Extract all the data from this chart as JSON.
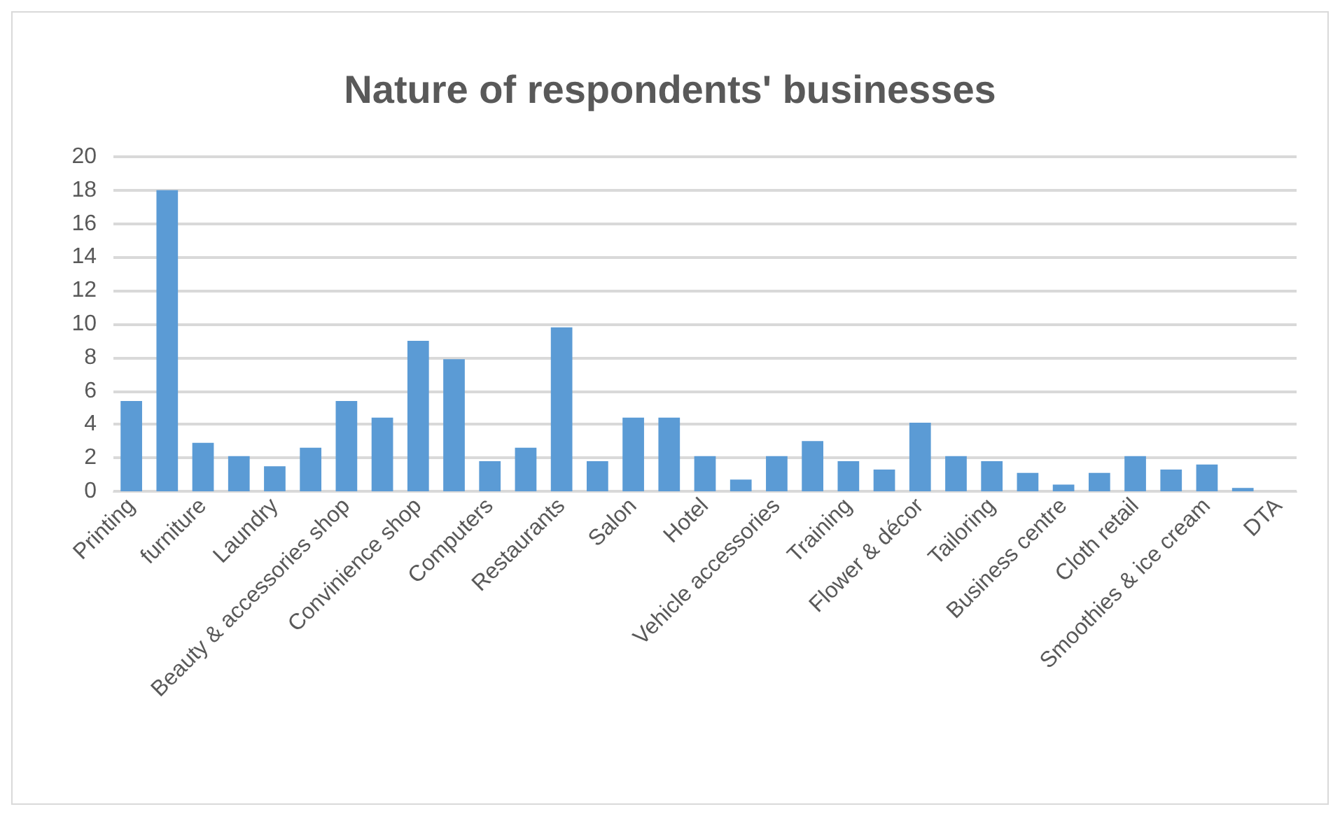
{
  "chart_data": {
    "type": "bar",
    "title": "Nature of respondents' businesses",
    "categories": [
      "Printing",
      null,
      "furniture",
      null,
      "Laundry",
      null,
      "Beauty & accessories shop",
      null,
      "Convinience shop",
      null,
      "Computers",
      null,
      "Restaurants",
      null,
      "Salon",
      null,
      "Hotel",
      null,
      "Vehicle accessories",
      null,
      "Training",
      null,
      "Flower & décor",
      null,
      "Tailoring",
      null,
      "Business centre",
      null,
      "Cloth retail",
      null,
      "Smoothies & ice cream",
      null,
      "DTA"
    ],
    "values": [
      5.4,
      18,
      2.9,
      2.1,
      1.5,
      2.6,
      5.4,
      4.4,
      9,
      7.9,
      1.8,
      2.6,
      9.8,
      1.8,
      4.4,
      4.4,
      2.1,
      0.7,
      2.1,
      3,
      1.8,
      1.3,
      4.1,
      2.1,
      1.8,
      1.1,
      0.4,
      1.1,
      2.1,
      1.3,
      1.6,
      0.2,
      0
    ],
    "color": "#5b9bd5",
    "ylim": [
      0,
      20
    ],
    "yticks": [
      0,
      2,
      4,
      6,
      8,
      10,
      12,
      14,
      16,
      18,
      20
    ],
    "grid": "y"
  }
}
